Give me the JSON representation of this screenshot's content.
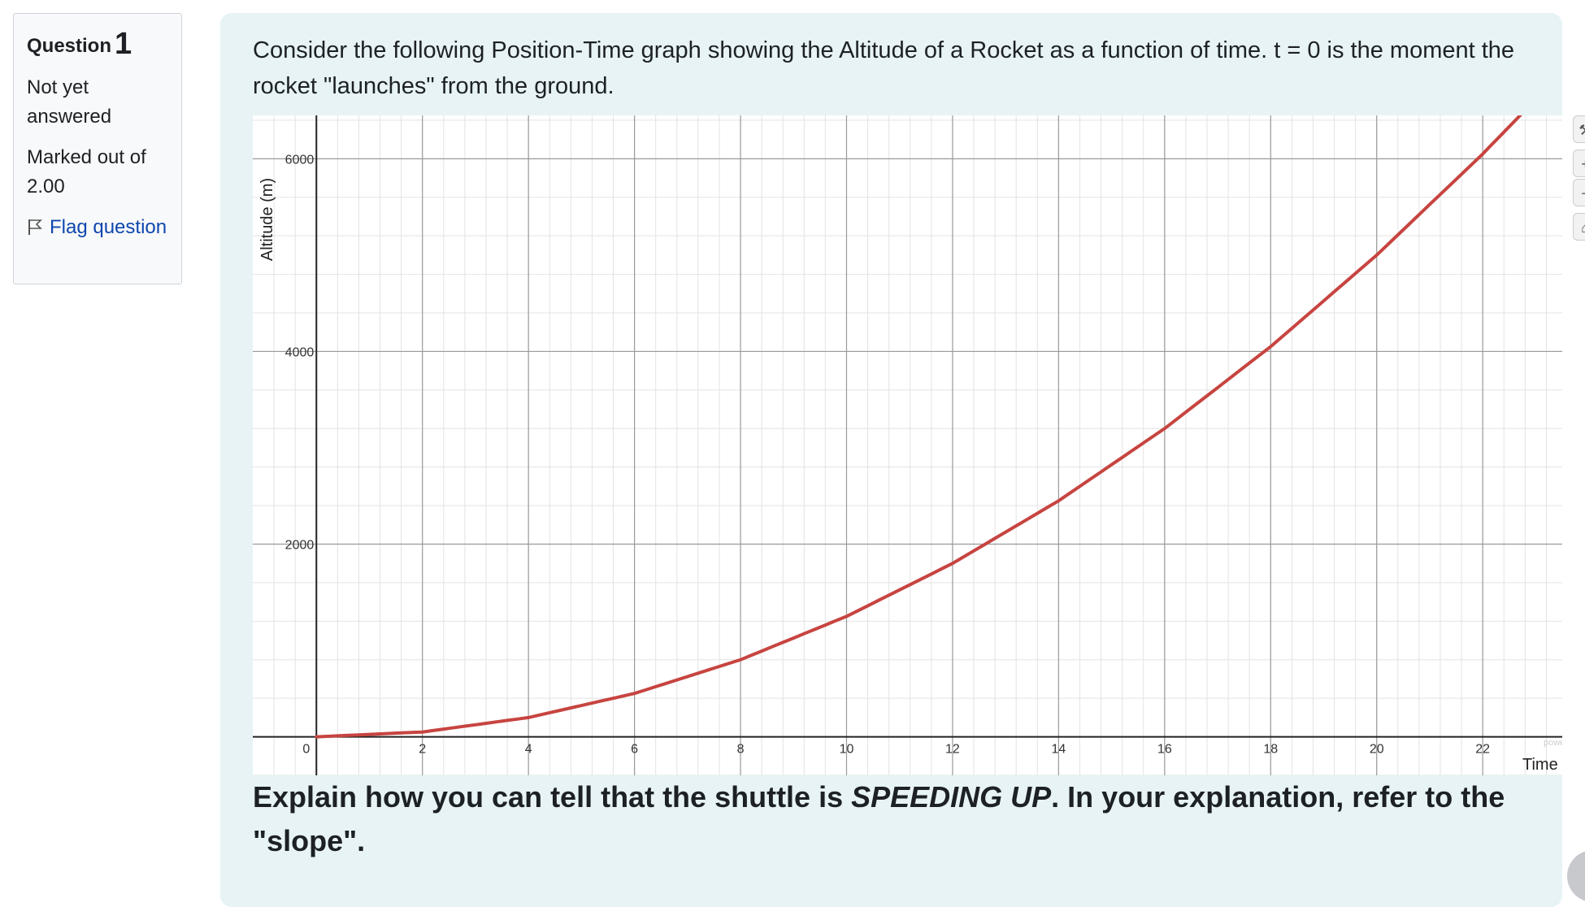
{
  "sidebar": {
    "question_label": "Question",
    "question_number": "1",
    "status": "Not yet answered",
    "marked_out_of": "Marked out of 2.00",
    "flag_label": "Flag question"
  },
  "prompt": "Consider the following Position-Time graph showing the Altitude of a Rocket as a function of time.  t = 0 is the moment the rocket \"launches\" from the ground.",
  "question": {
    "part1": "Explain how you can tell that the shuttle is ",
    "emphasis": "SPEEDING UP",
    "part2": ".  In your explanation, refer to the \"slope\"."
  },
  "graph_tools": {
    "wrench": "wrench-icon",
    "zoom_in": "+",
    "zoom_out": "−",
    "home": "home-icon"
  },
  "chart_data": {
    "type": "line",
    "xlabel": "Time (s",
    "ylabel": "Altitude (m)",
    "xlim": [
      -1.2,
      23.5
    ],
    "ylim": [
      -400,
      6450
    ],
    "x_ticks": [
      0,
      2,
      4,
      6,
      8,
      10,
      12,
      14,
      16,
      18,
      20,
      22
    ],
    "x_tick_labels": [
      "0",
      "2",
      "4",
      "6",
      "8",
      "10",
      "12",
      "14",
      "16",
      "18",
      "20",
      "22"
    ],
    "y_ticks": [
      2000,
      4000,
      6000
    ],
    "y_tick_labels": [
      "2000",
      "4000",
      "6000"
    ],
    "grid": true,
    "series": [
      {
        "color": "#c74440",
        "x": [
          0,
          2,
          4,
          6,
          8,
          10,
          12,
          14,
          16,
          18,
          20,
          22,
          23.5
        ],
        "y": [
          0,
          50,
          200,
          450,
          800,
          1250,
          1800,
          2450,
          3200,
          4050,
          5000,
          6050,
          6900
        ]
      }
    ],
    "watermark": "powered"
  }
}
